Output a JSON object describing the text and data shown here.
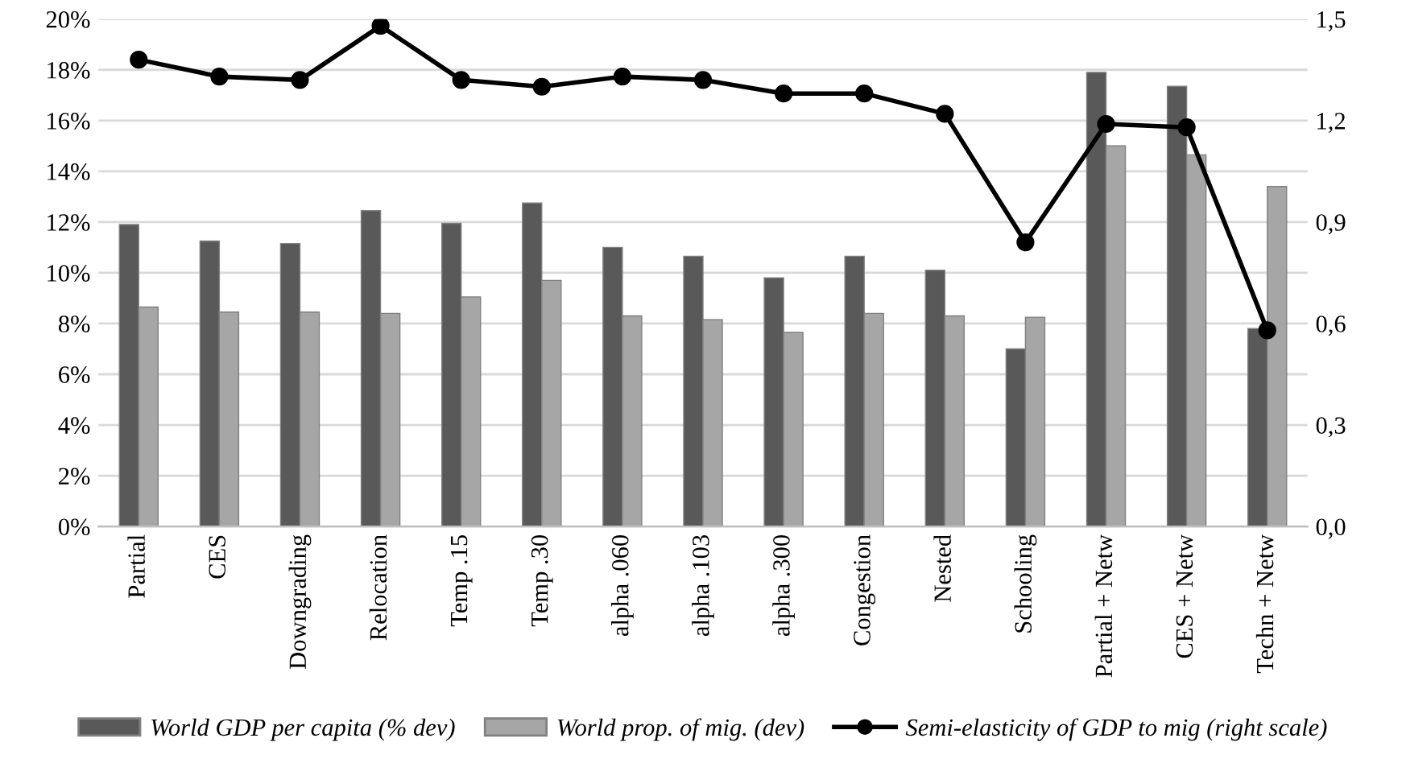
{
  "chart_data": {
    "type": "bar",
    "categories": [
      "Partial",
      "CES",
      "Downgrading",
      "Relocation",
      "Temp .15",
      "Temp .30",
      "alpha .060",
      "alpha .103",
      "alpha .300",
      "Congestion",
      "Nested",
      "Schooling",
      "Partial + Netw",
      "CES + Netw",
      "Techn + Netw"
    ],
    "series": [
      {
        "name": "World GDP per capita (% dev)",
        "color": "#595959",
        "values": [
          11.9,
          11.25,
          11.15,
          12.45,
          11.95,
          12.75,
          11.0,
          10.65,
          9.8,
          10.65,
          10.1,
          7.0,
          17.9,
          17.35,
          7.8
        ]
      },
      {
        "name": "World prop. of mig. (dev)",
        "color": "#a6a6a6",
        "values": [
          8.65,
          8.45,
          8.45,
          8.4,
          9.05,
          9.7,
          8.3,
          8.15,
          7.65,
          8.4,
          8.3,
          8.25,
          15.0,
          14.65,
          13.4
        ]
      },
      {
        "name": "Semi-elasticity of GDP to mig (right scale)",
        "color": "#000000",
        "type": "line",
        "axis": "y2",
        "marker": "circle",
        "values": [
          1.38,
          1.33,
          1.32,
          1.48,
          1.32,
          1.3,
          1.33,
          1.32,
          1.28,
          1.28,
          1.22,
          0.84,
          1.19,
          1.18,
          0.58
        ]
      }
    ],
    "ylim": [
      0,
      20
    ],
    "yticks": [
      {
        "value": 0,
        "label": "0%"
      },
      {
        "value": 2,
        "label": "2%"
      },
      {
        "value": 4,
        "label": "4%"
      },
      {
        "value": 6,
        "label": "6%"
      },
      {
        "value": 8,
        "label": "8%"
      },
      {
        "value": 10,
        "label": "10%"
      },
      {
        "value": 12,
        "label": "12%"
      },
      {
        "value": 14,
        "label": "14%"
      },
      {
        "value": 16,
        "label": "16%"
      },
      {
        "value": 18,
        "label": "18%"
      },
      {
        "value": 20,
        "label": "20%"
      }
    ],
    "y2lim": [
      0,
      1.5
    ],
    "y2ticks": [
      {
        "value": 0,
        "label": "0,0"
      },
      {
        "value": 0.3,
        "label": "0,3"
      },
      {
        "value": 0.6,
        "label": "0,6"
      },
      {
        "value": 0.9,
        "label": "0,9"
      },
      {
        "value": 1.2,
        "label": "1,2"
      },
      {
        "value": 1.5,
        "label": "1,5"
      }
    ],
    "grid": "y",
    "legend": "bottom"
  }
}
